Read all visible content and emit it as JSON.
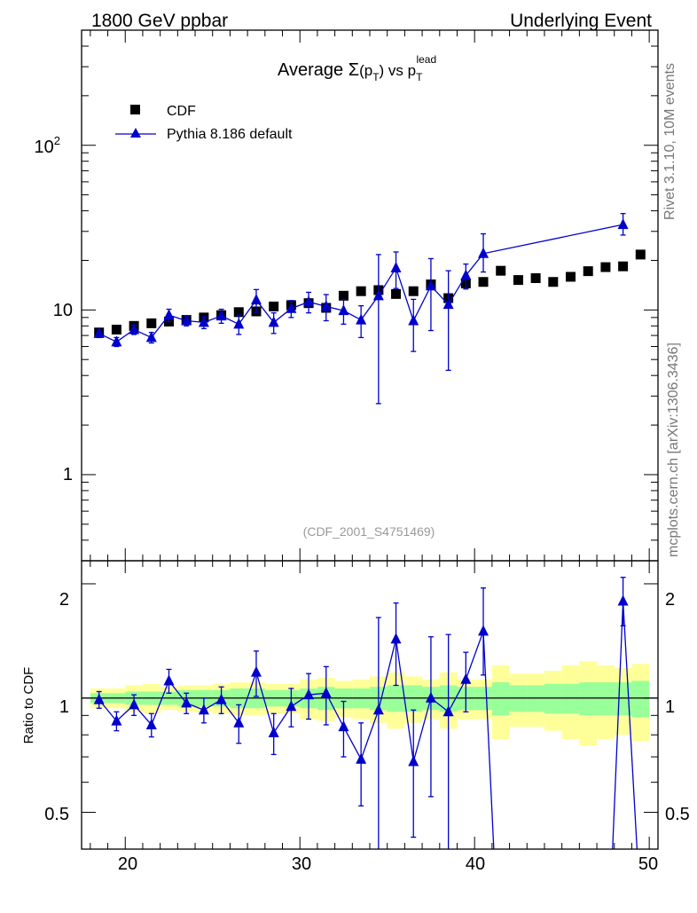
{
  "header": {
    "left": "1800 GeV ppbar",
    "right": "Underlying Event"
  },
  "side_labels": {
    "rivet": "Rivet 3.1.10,  10M events",
    "mcplots": "mcplots.cern.ch [arXiv:1306.3436]"
  },
  "colors": {
    "mc": "#0000cc",
    "data": "#000000",
    "band_inner": "#99ff99",
    "band_outer": "#ffff99",
    "analysis_label": "#999999"
  },
  "chart_data": [
    {
      "type": "scatter",
      "title": "Average Σ(p_T) vs p_T^lead",
      "title_parts": {
        "main": "Average ",
        "sigma": "Σ",
        "paren_open": "(p",
        "sub_t": "T",
        "paren_close": ") vs p",
        "sup": "lead"
      },
      "analysis_label": "(CDF_2001_S4751469)",
      "y_scale": "log",
      "ylim": [
        0.3,
        500
      ],
      "xlim": [
        17.5,
        50.5
      ],
      "ytick_labels": {
        "one": "1",
        "ten": "10",
        "hundred_base": "10",
        "hundred_exp": "2"
      },
      "legend": {
        "position": "top-left",
        "data_label": "CDF",
        "mc_label": "Pythia 8.186 default"
      },
      "series": [
        {
          "name": "CDF",
          "x": [
            18.5,
            19.5,
            20.5,
            21.5,
            22.5,
            23.5,
            24.5,
            25.5,
            26.5,
            27.5,
            28.5,
            29.5,
            30.5,
            31.5,
            32.5,
            33.5,
            34.5,
            35.5,
            36.5,
            37.5,
            38.5,
            39.5,
            40.5,
            41.5,
            42.5,
            43.5,
            44.5,
            45.5,
            46.5,
            47.5,
            48.5,
            49.5
          ],
          "values": [
            7.3,
            7.6,
            8.0,
            8.3,
            8.5,
            8.7,
            9.0,
            9.3,
            9.7,
            9.8,
            10.5,
            10.7,
            11.0,
            10.3,
            12.2,
            13.0,
            13.2,
            12.5,
            13.0,
            14.3,
            11.8,
            14.5,
            14.8,
            17.3,
            15.2,
            15.6,
            14.8,
            15.9,
            17.2,
            18.2,
            18.4,
            21.7
          ]
        },
        {
          "name": "Pythia 8.186 default",
          "x": [
            18.5,
            19.5,
            20.5,
            21.5,
            22.5,
            23.5,
            24.5,
            25.5,
            26.5,
            27.5,
            28.5,
            29.5,
            30.5,
            31.5,
            32.5,
            33.5,
            34.5,
            35.5,
            36.5,
            37.5,
            38.5,
            39.5,
            40.5,
            48.5
          ],
          "values": [
            7.2,
            6.4,
            7.6,
            6.8,
            9.3,
            8.6,
            8.4,
            9.2,
            8.2,
            11.5,
            8.4,
            10.2,
            11.2,
            10.5,
            9.9,
            8.7,
            12.2,
            18.0,
            8.6,
            14.0,
            10.8,
            16.2,
            22.0,
            33.0
          ],
          "err_low": [
            0.4,
            0.4,
            0.5,
            0.5,
            0.8,
            0.6,
            0.7,
            0.9,
            1.1,
            1.8,
            1.2,
            1.2,
            1.6,
            1.9,
            1.7,
            1.9,
            9.5,
            4.5,
            3.0,
            6.5,
            6.5,
            2.8,
            5.0,
            4.5
          ],
          "err_high": [
            0.4,
            0.4,
            0.5,
            0.5,
            0.8,
            0.6,
            0.7,
            0.9,
            1.1,
            1.8,
            1.2,
            1.2,
            1.6,
            1.9,
            1.7,
            1.9,
            9.5,
            4.5,
            3.0,
            6.5,
            6.5,
            2.8,
            7.0,
            5.5
          ]
        }
      ]
    },
    {
      "type": "scatter",
      "ylabel": "Ratio to CDF",
      "y_scale": "log",
      "ylim": [
        0.4,
        2.3
      ],
      "xlim": [
        17.5,
        50.5
      ],
      "yticks": [
        "0.5",
        "1",
        "2"
      ],
      "xticks": [
        "20",
        "30",
        "40",
        "50"
      ],
      "band": {
        "x": [
          18.5,
          19.5,
          20.5,
          21.5,
          22.5,
          23.5,
          24.5,
          25.5,
          26.5,
          27.5,
          28.5,
          29.5,
          30.5,
          31.5,
          32.5,
          33.5,
          34.5,
          35.5,
          36.5,
          37.5,
          38.5,
          39.5,
          40.5,
          41.5,
          42.5,
          43.5,
          44.5,
          45.5,
          46.5,
          47.5,
          48.5,
          49.5
        ],
        "inner": [
          0.03,
          0.03,
          0.04,
          0.04,
          0.04,
          0.05,
          0.05,
          0.05,
          0.06,
          0.06,
          0.05,
          0.05,
          0.06,
          0.07,
          0.06,
          0.06,
          0.07,
          0.08,
          0.08,
          0.07,
          0.08,
          0.07,
          0.07,
          0.1,
          0.08,
          0.08,
          0.09,
          0.09,
          0.1,
          0.1,
          0.1,
          0.11
        ],
        "outer": [
          0.06,
          0.06,
          0.08,
          0.09,
          0.07,
          0.08,
          0.08,
          0.09,
          0.1,
          0.1,
          0.09,
          0.09,
          0.12,
          0.13,
          0.11,
          0.12,
          0.14,
          0.17,
          0.14,
          0.12,
          0.17,
          0.12,
          0.12,
          0.22,
          0.16,
          0.16,
          0.18,
          0.22,
          0.25,
          0.22,
          0.2,
          0.23
        ]
      },
      "series": [
        {
          "name": "Pythia 8.186 default / CDF",
          "x": [
            18.5,
            19.5,
            20.5,
            21.5,
            22.5,
            23.5,
            24.5,
            25.5,
            26.5,
            27.5,
            28.5,
            29.5,
            30.5,
            31.5,
            32.5,
            33.5,
            34.5,
            35.5,
            36.5,
            37.5,
            38.5,
            39.5,
            40.5,
            48.5
          ],
          "values": [
            0.99,
            0.87,
            0.96,
            0.85,
            1.11,
            0.97,
            0.93,
            0.99,
            0.86,
            1.17,
            0.81,
            0.95,
            1.02,
            1.03,
            0.84,
            0.69,
            0.93,
            1.43,
            0.68,
            1.0,
            0.92,
            1.12,
            1.5,
            1.8
          ],
          "err_low": [
            0.05,
            0.05,
            0.06,
            0.06,
            0.08,
            0.06,
            0.07,
            0.08,
            0.1,
            0.16,
            0.1,
            0.11,
            0.14,
            0.18,
            0.14,
            0.17,
            0.7,
            0.35,
            0.25,
            0.45,
            0.55,
            0.2,
            0.35,
            0.25
          ],
          "err_high": [
            0.05,
            0.05,
            0.06,
            0.06,
            0.08,
            0.06,
            0.07,
            0.08,
            0.1,
            0.16,
            0.1,
            0.11,
            0.14,
            0.18,
            0.14,
            0.17,
            0.7,
            0.35,
            0.25,
            0.45,
            0.55,
            0.2,
            0.45,
            0.28
          ],
          "out_of_range_after": [
            0.2,
            0.2
          ]
        }
      ]
    }
  ]
}
